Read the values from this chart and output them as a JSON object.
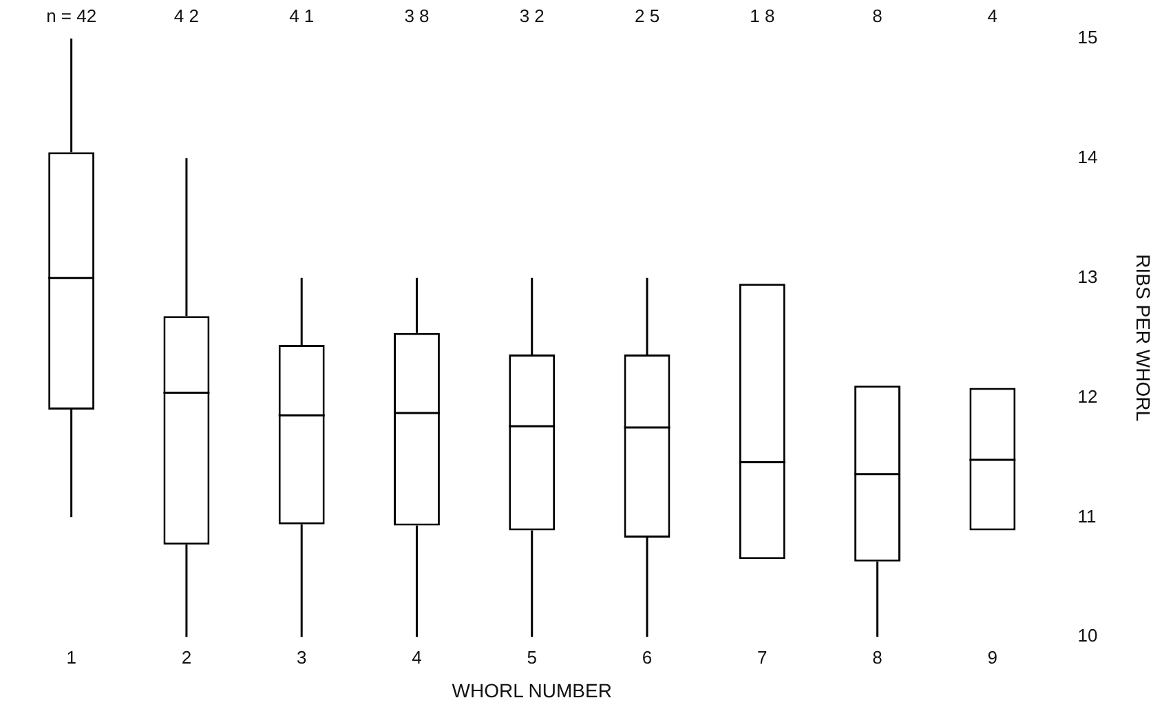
{
  "chart_data": {
    "type": "box",
    "xlabel": "WHORL NUMBER",
    "ylabel": "RIBS PER WHORL",
    "categories": [
      "1",
      "2",
      "3",
      "4",
      "5",
      "6",
      "7",
      "8",
      "9"
    ],
    "boxes": [
      {
        "low": 11,
        "q1": 11.9,
        "median": 13,
        "q3": 14.05,
        "high": 15
      },
      {
        "low": 10,
        "q1": 10.77,
        "median": 12.04,
        "q3": 12.68,
        "high": 14
      },
      {
        "low": 10,
        "q1": 10.94,
        "median": 11.85,
        "q3": 12.44,
        "high": 13
      },
      {
        "low": 10,
        "q1": 10.93,
        "median": 11.87,
        "q3": 12.54,
        "high": 13
      },
      {
        "low": 10,
        "q1": 10.89,
        "median": 11.76,
        "q3": 12.36,
        "high": 13
      },
      {
        "low": 10,
        "q1": 10.83,
        "median": 11.75,
        "q3": 12.36,
        "high": 13
      },
      {
        "low": 10.65,
        "q1": 10.65,
        "median": 11.46,
        "q3": 12.95,
        "high": 12.95
      },
      {
        "low": 10,
        "q1": 10.63,
        "median": 11.36,
        "q3": 12.1,
        "high": 12.1
      },
      {
        "low": 10.89,
        "q1": 10.89,
        "median": 11.48,
        "q3": 12.08,
        "high": 12.08
      }
    ],
    "ylim": [
      10,
      15
    ],
    "yticks": [
      10,
      11,
      12,
      13,
      14,
      15
    ],
    "grid": false,
    "legend": false,
    "color": "#000000",
    "annotations": [
      "n = 42",
      "4 2",
      "4 1",
      "3 8",
      "3 2",
      "2 5",
      "1 8",
      "8",
      "4"
    ]
  }
}
